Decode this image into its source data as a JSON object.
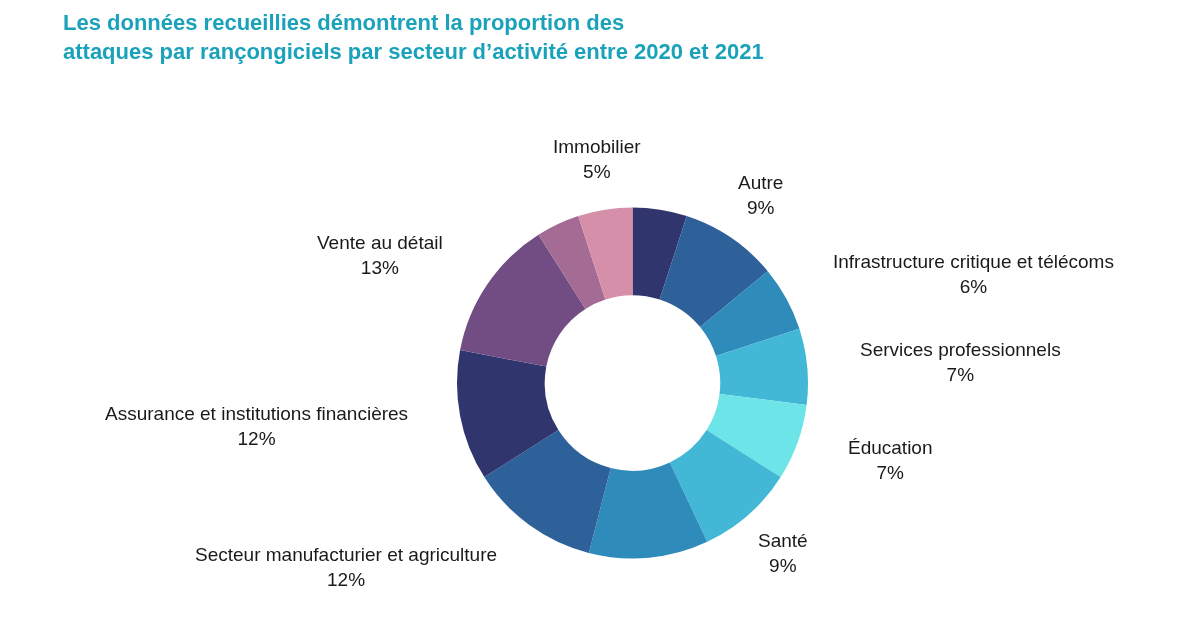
{
  "chart_data": {
    "type": "donut",
    "title": "Les données recueillies démontrent la proportion des attaques par rançongiciels par secteur d’activité entre 2020 et 2021",
    "categories": [
      null,
      "Autre",
      "Infrastructure critique et télécoms",
      "Services professionnels",
      "Éducation",
      "Santé",
      null,
      "Secteur manufacturier et agriculture",
      "Assurance et institutions financières",
      "Vente au détail",
      null,
      "Immobilier"
    ],
    "values": [
      5,
      9,
      6,
      7,
      7,
      9,
      11,
      12,
      12,
      13,
      4,
      5
    ],
    "value_labels": [
      null,
      "9%",
      "6%",
      "7%",
      "7%",
      "9%",
      null,
      "12%",
      "12%",
      "13%",
      null,
      "5%"
    ],
    "colors": [
      "#30356d",
      "#2e6099",
      "#2e8bba",
      "#42b8d6",
      "#6ce4e8",
      "#42b8d6",
      "#2e8bba",
      "#2e6099",
      "#30356d",
      "#714d84",
      "#a46b94",
      "#d68fa8"
    ]
  }
}
